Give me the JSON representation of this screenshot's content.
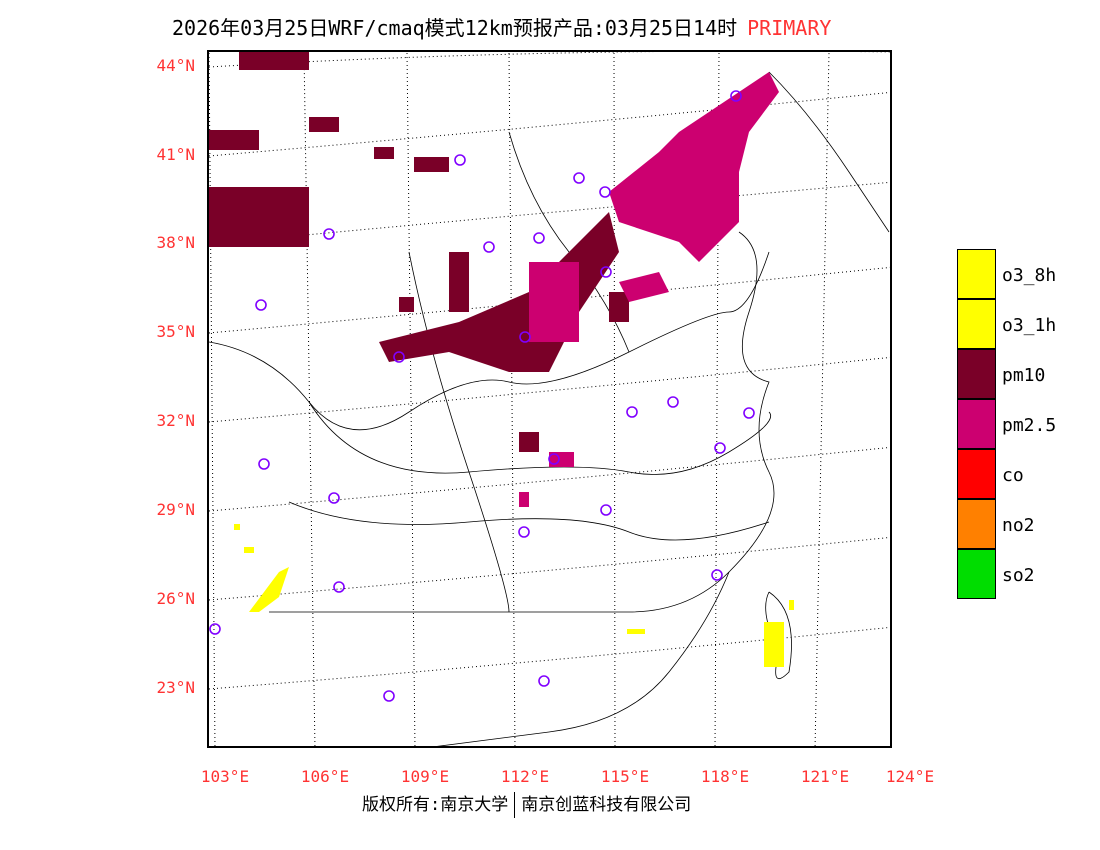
{
  "title": {
    "main": "2026年03月25日WRF/cmaq模式12km预报产品:03月25日14时",
    "pollutant": "PRIMARY"
  },
  "lat_labels": [
    "44°N",
    "41°N",
    "38°N",
    "35°N",
    "32°N",
    "29°N",
    "26°N",
    "23°N"
  ],
  "lon_labels": [
    "103°E",
    "106°E",
    "109°E",
    "112°E",
    "115°E",
    "118°E",
    "121°E",
    "124°E"
  ],
  "legend": [
    {
      "label": "o3_8h",
      "color": "#ffff00"
    },
    {
      "label": "o3_1h",
      "color": "#ffff00"
    },
    {
      "label": "pm10",
      "color": "#7a0028"
    },
    {
      "label": "pm2.5",
      "color": "#cc0070"
    },
    {
      "label": "co",
      "color": "#ff0000"
    },
    {
      "label": "no2",
      "color": "#ff8000"
    },
    {
      "label": "so2",
      "color": "#00dd00"
    }
  ],
  "footer": {
    "left": "版权所有:南京大学",
    "right": "南京创蓝科技有限公司"
  }
}
